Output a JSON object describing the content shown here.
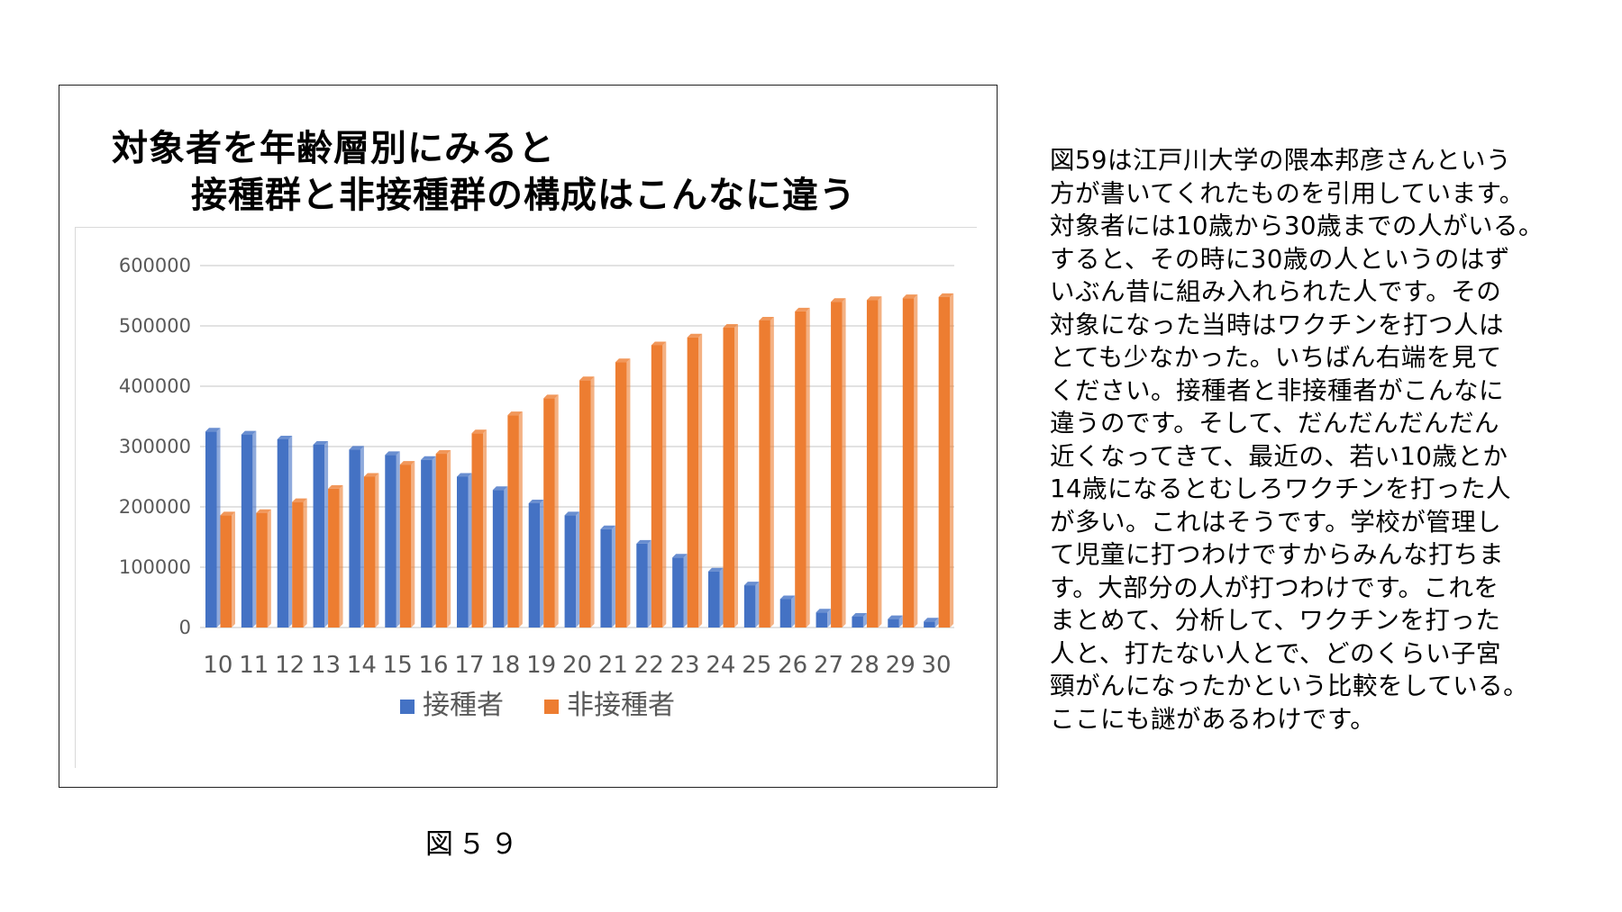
{
  "body_text": "図59は江戸川大学の隈本邦彦さんという\n方が書いてくれたものを引用しています。\n対象者には10歳から30歳までの人がいる。\nすると、その時に30歳の人というのはず\nいぶん昔に組み入れられた人です。その\n対象になった当時はワクチンを打つ人は\nとても少なかった。いちばん右端を見て\nください。接種者と非接種者がこんなに\n違うのです。そして、だんだんだんだん\n近くなってきて、最近の、若い10歳とか\n14歳になるとむしろワクチンを打った人\nが多い。これはそうです。学校が管理し\nて児童に打つわけですからみんな打ちま\nす。大部分の人が打つわけです。これを\nまとめて、分析して、ワクチンを打った\n人と、打たない人とで、どのくらい子宮\n頸がんになったかという比較をしている。\nここにも謎があるわけです。",
  "caption": "図５９",
  "colors": {
    "vaccinated": "#4472c4",
    "unvaccinated": "#ed7d31",
    "grid": "#d9d9d9",
    "tick_text": "#595959"
  },
  "chart_data": {
    "type": "bar",
    "title_line1": "対象者を年齢層別にみると",
    "title_line2": "接種群と非接種群の構成はこんなに違う",
    "categories": [
      "10",
      "11",
      "12",
      "13",
      "14",
      "15",
      "16",
      "17",
      "18",
      "19",
      "20",
      "21",
      "22",
      "23",
      "24",
      "25",
      "26",
      "27",
      "28",
      "29",
      "30"
    ],
    "series": [
      {
        "name": "接種者",
        "color": "#4472c4",
        "values": [
          325000,
          320000,
          312000,
          303000,
          295000,
          286000,
          278000,
          250000,
          228000,
          206000,
          186000,
          163000,
          139000,
          116000,
          93000,
          70000,
          47000,
          25000,
          18000,
          14000,
          10000
        ]
      },
      {
        "name": "非接種者",
        "color": "#ed7d31",
        "values": [
          186000,
          190000,
          208000,
          230000,
          250000,
          270000,
          288000,
          322000,
          352000,
          380000,
          410000,
          440000,
          468000,
          481000,
          497000,
          509000,
          524000,
          540000,
          543000,
          546000,
          548000
        ]
      }
    ],
    "y_ticks": [
      "600000",
      "500000",
      "400000",
      "300000",
      "200000",
      "100000",
      "0"
    ],
    "ylim": [
      0,
      600000
    ],
    "grid": true,
    "legend_position": "bottom"
  }
}
